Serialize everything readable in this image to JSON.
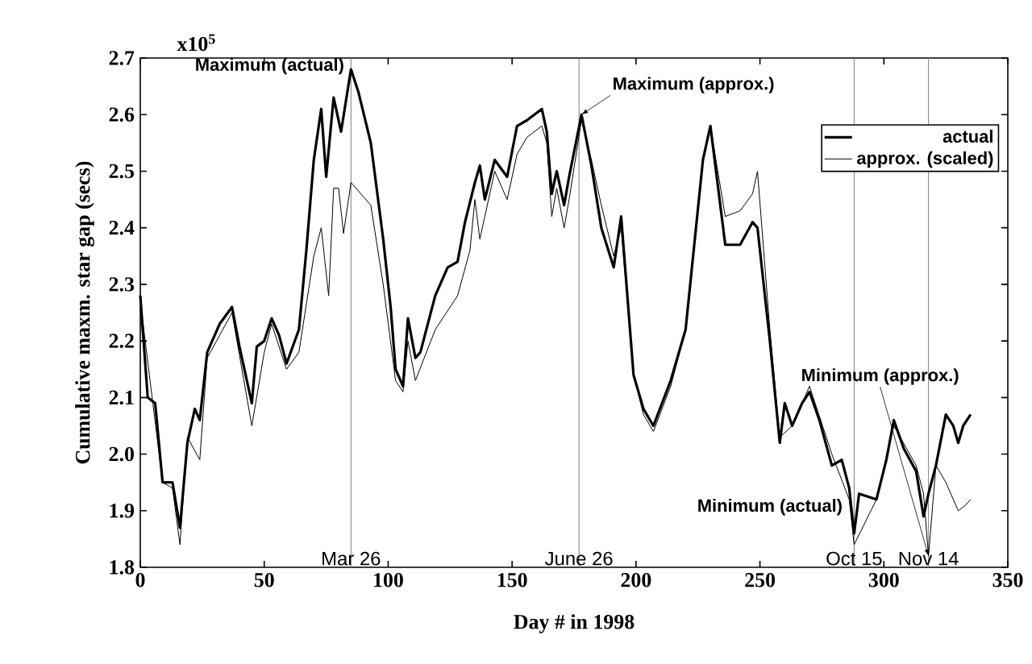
{
  "chart_data": {
    "type": "line",
    "xlabel": "Day # in 1998",
    "ylabel": "Cumulative maxm. star gap (secs)",
    "xlim": [
      0,
      350
    ],
    "xticks": [
      0,
      50,
      100,
      150,
      200,
      250,
      300,
      350
    ],
    "ylim": [
      1.8,
      2.7
    ],
    "yticks": [
      1.8,
      1.9,
      {
        "value": 2,
        "label": "2.0"
      },
      2.1,
      2.2,
      2.3,
      2.4,
      2.5,
      2.6,
      2.7
    ],
    "grid": false,
    "legend": "top right",
    "series": [
      {
        "name": "actual",
        "color": "#000000",
        "x": [
          0,
          3,
          6,
          9,
          13,
          16,
          19,
          22,
          24,
          27,
          32,
          37,
          40,
          45,
          47,
          50,
          53,
          56,
          59,
          64,
          67,
          70,
          73,
          75,
          78,
          81,
          85,
          88,
          93,
          98,
          101,
          103,
          106,
          108,
          111,
          113,
          119,
          124,
          128,
          131,
          135,
          137,
          139,
          143,
          148,
          152,
          156,
          162,
          164,
          166,
          168,
          171,
          173,
          178,
          182,
          186,
          191,
          194,
          199,
          203,
          207,
          214,
          220,
          227,
          230,
          236,
          242,
          247,
          249,
          254,
          258,
          260,
          263,
          267,
          270,
          274,
          279,
          283,
          286,
          288,
          290,
          297,
          301,
          304,
          308,
          313,
          316,
          318,
          321,
          325,
          328,
          330,
          332,
          335
        ],
        "values": [
          2.28,
          2.1,
          2.09,
          1.95,
          1.95,
          1.87,
          2.02,
          2.08,
          2.06,
          2.18,
          2.23,
          2.26,
          2.19,
          2.09,
          2.19,
          2.2,
          2.24,
          2.21,
          2.16,
          2.22,
          2.36,
          2.52,
          2.61,
          2.49,
          2.63,
          2.57,
          2.68,
          2.64,
          2.55,
          2.38,
          2.26,
          2.15,
          2.12,
          2.24,
          2.17,
          2.18,
          2.28,
          2.33,
          2.34,
          2.41,
          2.48,
          2.51,
          2.45,
          2.52,
          2.49,
          2.58,
          2.59,
          2.61,
          2.57,
          2.46,
          2.5,
          2.44,
          2.49,
          2.6,
          2.51,
          2.4,
          2.33,
          2.42,
          2.14,
          2.08,
          2.05,
          2.13,
          2.22,
          2.52,
          2.58,
          2.37,
          2.37,
          2.41,
          2.4,
          2.2,
          2.02,
          2.09,
          2.05,
          2.09,
          2.11,
          2.06,
          1.98,
          1.99,
          1.94,
          1.86,
          1.93,
          1.92,
          1.99,
          2.06,
          2.01,
          1.97,
          1.89,
          1.93,
          1.98,
          2.07,
          2.05,
          2.02,
          2.05,
          2.07
        ]
      },
      {
        "name": "approx. (scaled)",
        "color": "#000000",
        "x": [
          0,
          9,
          13,
          16,
          19,
          24,
          27,
          32,
          37,
          45,
          50,
          53,
          59,
          64,
          70,
          73,
          76,
          78,
          80,
          82,
          85,
          93,
          98,
          103,
          106,
          108,
          111,
          119,
          128,
          133,
          135,
          137,
          139,
          143,
          148,
          152,
          156,
          162,
          164,
          166,
          168,
          171,
          173,
          178,
          182,
          186,
          191,
          194,
          199,
          203,
          207,
          214,
          220,
          227,
          230,
          236,
          242,
          247,
          249,
          254,
          258,
          263,
          270,
          279,
          286,
          288,
          297,
          304,
          313,
          316,
          318,
          321,
          325,
          330,
          333,
          335
        ],
        "values": [
          2.27,
          1.95,
          1.94,
          1.84,
          2.03,
          1.99,
          2.17,
          2.21,
          2.25,
          2.05,
          2.18,
          2.23,
          2.15,
          2.18,
          2.35,
          2.4,
          2.28,
          2.47,
          2.47,
          2.39,
          2.48,
          2.44,
          2.3,
          2.13,
          2.11,
          2.2,
          2.13,
          2.22,
          2.28,
          2.36,
          2.45,
          2.38,
          2.42,
          2.5,
          2.45,
          2.53,
          2.56,
          2.58,
          2.55,
          2.42,
          2.47,
          2.4,
          2.45,
          2.59,
          2.52,
          2.44,
          2.35,
          2.4,
          2.14,
          2.07,
          2.04,
          2.12,
          2.22,
          2.52,
          2.58,
          2.42,
          2.43,
          2.46,
          2.5,
          2.22,
          2.03,
          2.05,
          2.12,
          2,
          1.92,
          1.84,
          1.92,
          2.05,
          1.98,
          1.93,
          1.82,
          1.98,
          1.95,
          1.9,
          1.91,
          1.92
        ]
      }
    ],
    "ref_lines": [
      {
        "axis": "x",
        "value": 85,
        "label": "Mar 26",
        "color": "#808080"
      },
      {
        "axis": "x",
        "value": 177,
        "label": "June 26",
        "color": "#808080"
      },
      {
        "axis": "x",
        "value": 288,
        "label": "Oct 15",
        "color": "#808080"
      },
      {
        "axis": "x",
        "value": 318,
        "label": "Nov 14",
        "color": "#808080"
      }
    ],
    "annotations": [
      "x10$^{5}$",
      {
        "text": "Maximum (actual)",
        "x": 85,
        "y": 2.68
      },
      {
        "text": "Maximum (approx.)",
        "x": 178,
        "y": 2.6
      },
      {
        "text": "Minimum (actual)",
        "x": 288,
        "y": 1.86
      },
      {
        "text": "Minimum (approx.)",
        "x": 318,
        "y": 1.82
      }
    ]
  }
}
